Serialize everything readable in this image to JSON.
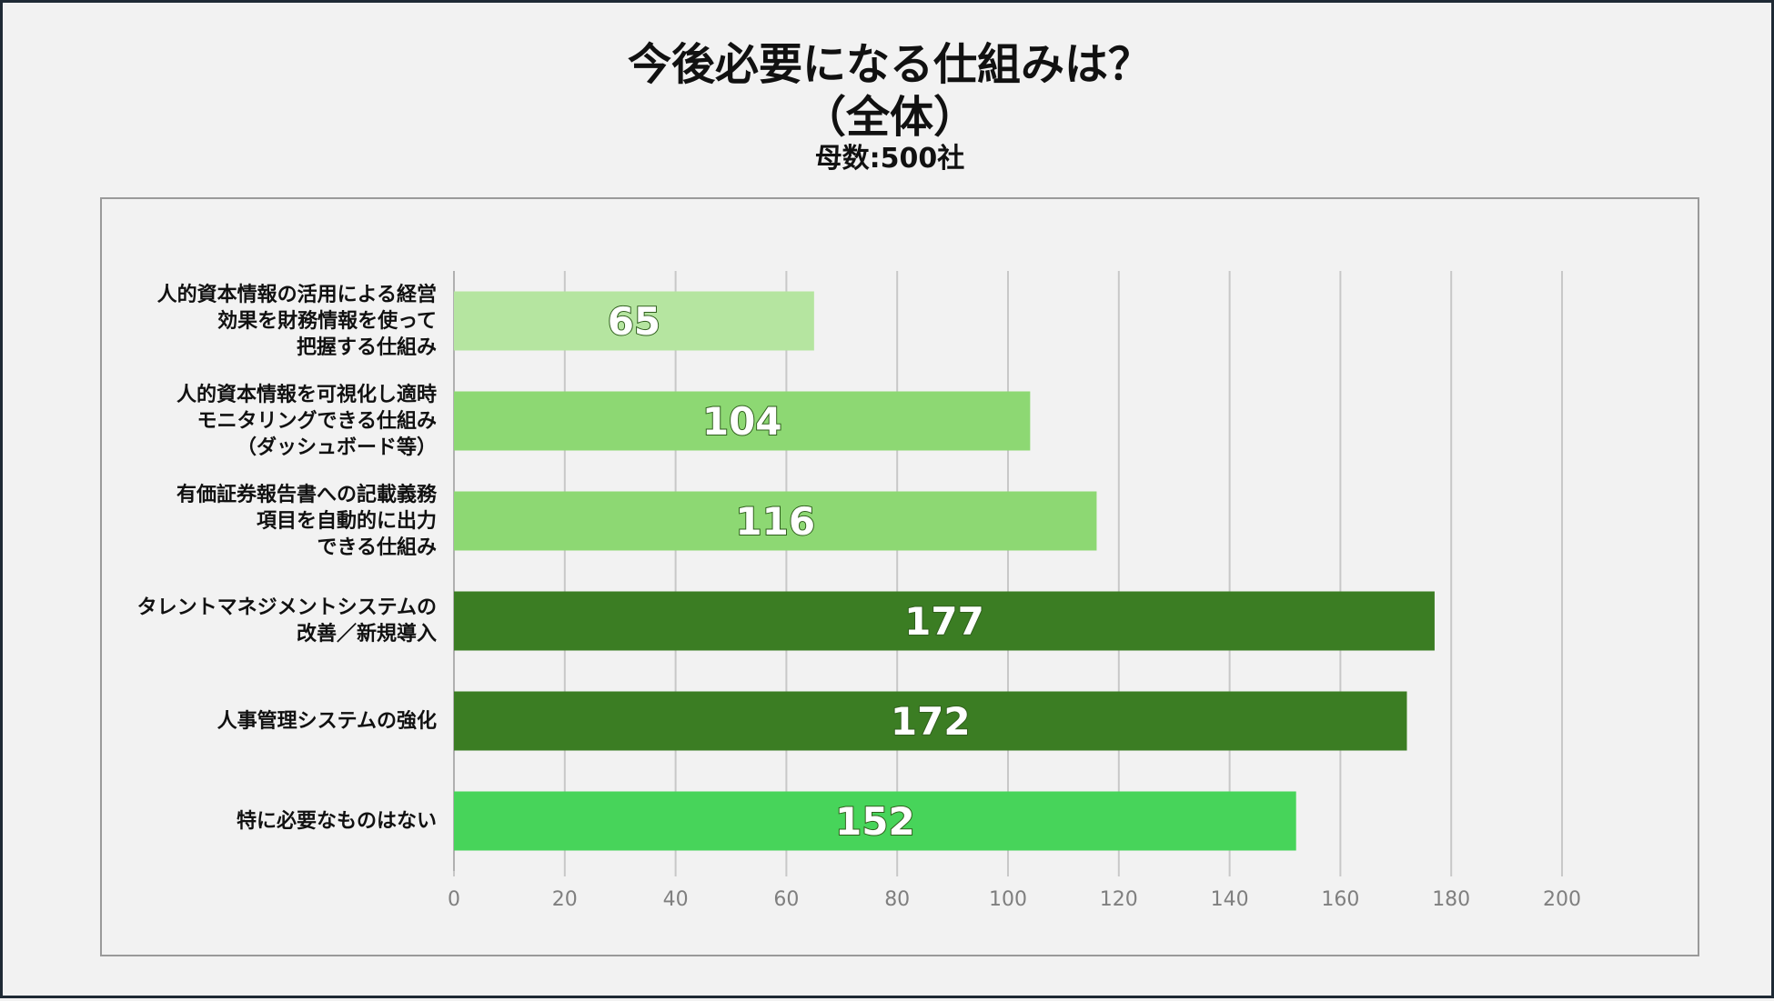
{
  "title_line1": "今後必要になる仕組みは？",
  "title_line2": "（全体）",
  "subtitle": "母数:500社",
  "chart_data": {
    "type": "bar",
    "orientation": "horizontal",
    "title": "今後必要になる仕組みは？（全体）",
    "subtitle": "母数:500社",
    "categories": [
      [
        "人的資本情報の活用による経営",
        "効果を財務情報を使って",
        "把握する仕組み"
      ],
      [
        "人的資本情報を可視化し適時",
        "モニタリングできる仕組み",
        "（ダッシュボード等）"
      ],
      [
        "有価証券報告書への記載義務",
        "項目を自動的に出力",
        "できる仕組み"
      ],
      [
        "タレントマネジメントシステムの",
        "改善／新規導入"
      ],
      [
        "人事管理システムの強化"
      ],
      [
        "特に必要なものはない"
      ]
    ],
    "values": [
      65,
      104,
      116,
      177,
      172,
      152
    ],
    "bar_colors": [
      "#b5e5a0",
      "#8dd873",
      "#8dd873",
      "#3b7d23",
      "#3b7d23",
      "#47d45a"
    ],
    "xlim": [
      0,
      200
    ],
    "xticks": [
      0,
      20,
      40,
      60,
      80,
      100,
      120,
      140,
      160,
      180,
      200
    ],
    "grid": true,
    "legend": "none"
  }
}
